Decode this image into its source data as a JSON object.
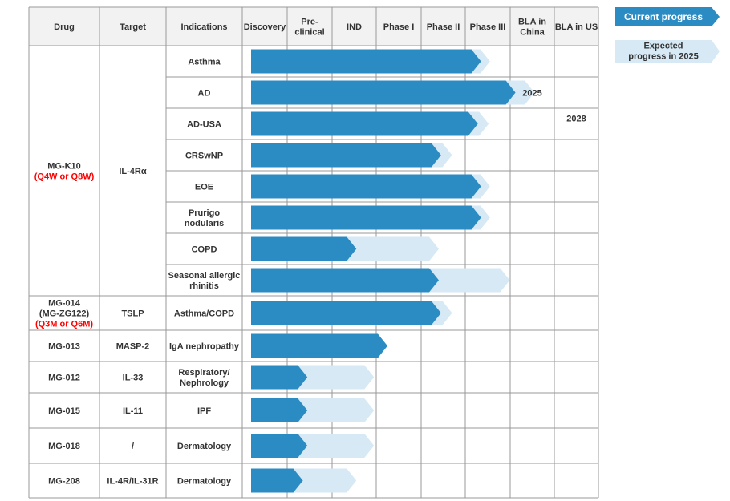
{
  "chart_data": {
    "type": "table",
    "columns": [
      "Drug",
      "Target",
      "Indications",
      "Discovery",
      "Pre-\nclinical",
      "IND",
      "Phase I",
      "Phase II",
      "Phase III",
      "BLA in\nChina",
      "BLA in US"
    ],
    "legend": {
      "current": "Current progress",
      "expected": "Expected\nprogress in 2025"
    },
    "drugs": [
      {
        "name": "MG-K10",
        "dosing": "(Q4W or Q8W)",
        "target": "IL-4Rα",
        "indications": [
          {
            "indication": "Asthma",
            "current_end": 8.35,
            "expected_end": 8.55
          },
          {
            "indication": "AD",
            "current_end": 9.12,
            "expected_end": 9.55,
            "note": "2025"
          },
          {
            "indication": "AD-USA",
            "current_end": 8.28,
            "expected_end": 8.52,
            "note": "2028"
          },
          {
            "indication": "CRSwNP",
            "current_end": 7.45,
            "expected_end": 7.7
          },
          {
            "indication": "EOE",
            "current_end": 8.35,
            "expected_end": 8.55
          },
          {
            "indication": "Prurigo\nnodularis",
            "current_end": 8.35,
            "expected_end": 8.55
          },
          {
            "indication": "COPD",
            "current_end": 5.55,
            "expected_end": 7.4
          },
          {
            "indication": "Seasonal allergic\nrhinitis",
            "current_end": 7.4,
            "expected_end": 8.99
          }
        ]
      },
      {
        "name": "MG-014\n(MG-ZG122)",
        "dosing": "(Q3M or Q6M)",
        "target": "TSLP",
        "indications": [
          {
            "indication": "Asthma/COPD",
            "current_end": 7.45,
            "expected_end": 7.7
          }
        ]
      },
      {
        "name": "MG-013",
        "target": "MASP-2",
        "indications": [
          {
            "indication": "IgA nephropathy",
            "current_end": 6.25,
            "expected_end": 6.25
          }
        ]
      },
      {
        "name": "MG-012",
        "target": "IL-33",
        "indications": [
          {
            "indication": "Respiratory/\nNephrology",
            "current_end": 4.45,
            "expected_end": 5.95
          }
        ]
      },
      {
        "name": "MG-015",
        "target": "IL-11",
        "indications": [
          {
            "indication": "IPF",
            "current_end": 4.45,
            "expected_end": 5.95
          }
        ]
      },
      {
        "name": "MG-018",
        "target": "/",
        "indications": [
          {
            "indication": "Dermatology",
            "current_end": 4.45,
            "expected_end": 5.95
          }
        ]
      },
      {
        "name": "MG-208",
        "target": "IL-4R/IL-31R",
        "indications": [
          {
            "indication": "Dermatology",
            "current_end": 4.35,
            "expected_end": 5.55
          }
        ]
      }
    ],
    "colors": {
      "current": "#2b8bc3",
      "expected": "#d6e9f5",
      "header_bg": "#f2f2f2",
      "grid": "#999999",
      "dosing_text": "#ff0000"
    }
  }
}
